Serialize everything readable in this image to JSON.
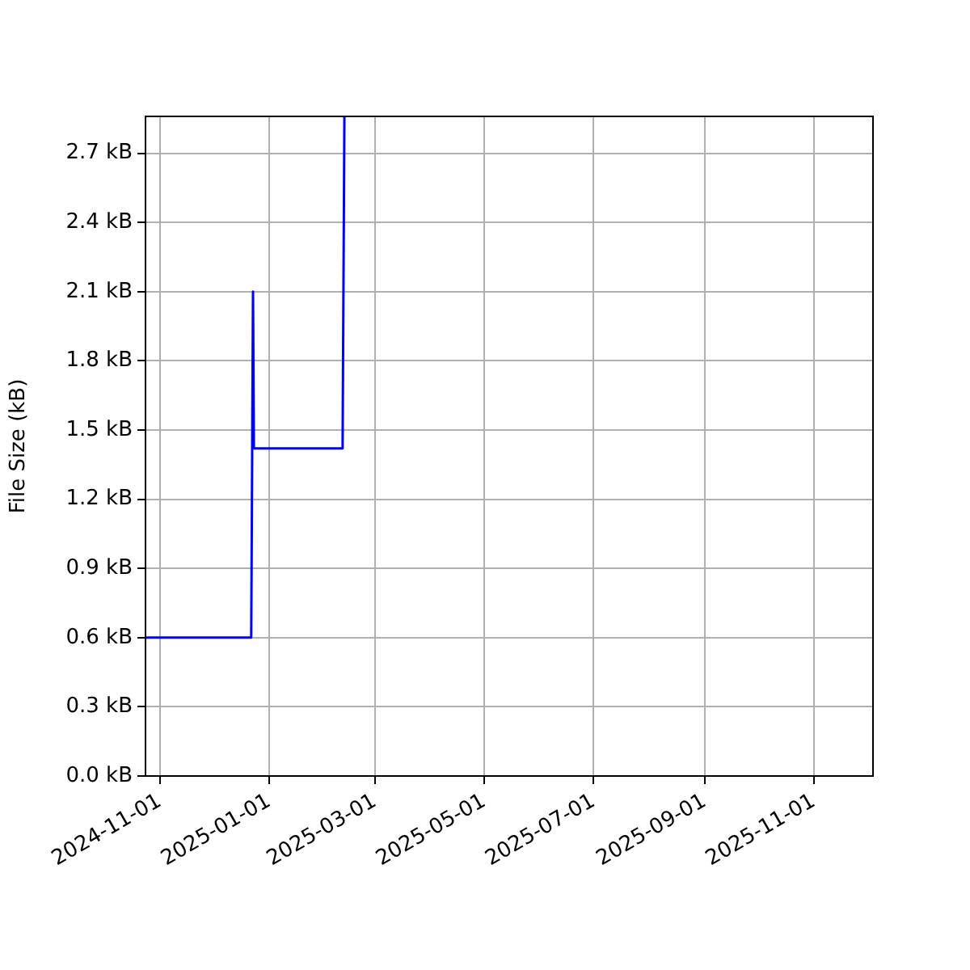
{
  "chart_data": {
    "type": "line",
    "ylabel": "File Size (kB)",
    "series": [
      {
        "color": "#0000ff",
        "x": [
          "2024-10-24",
          "2024-12-22",
          "2024-12-23",
          "2024-12-23T12:00",
          "2025-02-11",
          "2025-02-12"
        ],
        "values": [
          0.6,
          0.6,
          2.1,
          1.42,
          1.42,
          2.86
        ]
      }
    ],
    "xlim": [
      "2024-10-24",
      "2025-12-04"
    ],
    "xticks": [
      {
        "value": "2024-11-01",
        "label": "2024-11-01"
      },
      {
        "value": "2025-01-01",
        "label": "2025-01-01"
      },
      {
        "value": "2025-03-01",
        "label": "2025-03-01"
      },
      {
        "value": "2025-05-01",
        "label": "2025-05-01"
      },
      {
        "value": "2025-07-01",
        "label": "2025-07-01"
      },
      {
        "value": "2025-09-01",
        "label": "2025-09-01"
      },
      {
        "value": "2025-11-01",
        "label": "2025-11-01"
      }
    ],
    "ylim": [
      0,
      2.86
    ],
    "yticks": [
      {
        "value": 0,
        "label": "0.0 kB"
      },
      {
        "value": 0.3,
        "label": "0.3 kB"
      },
      {
        "value": 0.6,
        "label": "0.6 kB"
      },
      {
        "value": 0.9,
        "label": "0.9 kB"
      },
      {
        "value": 1.2,
        "label": "1.2 kB"
      },
      {
        "value": 1.5,
        "label": "1.5 kB"
      },
      {
        "value": 1.8,
        "label": "1.8 kB"
      },
      {
        "value": 2.1,
        "label": "2.1 kB"
      },
      {
        "value": 2.4,
        "label": "2.4 kB"
      },
      {
        "value": 2.7,
        "label": "2.7 kB"
      }
    ],
    "grid": true,
    "line_style": "solid"
  }
}
